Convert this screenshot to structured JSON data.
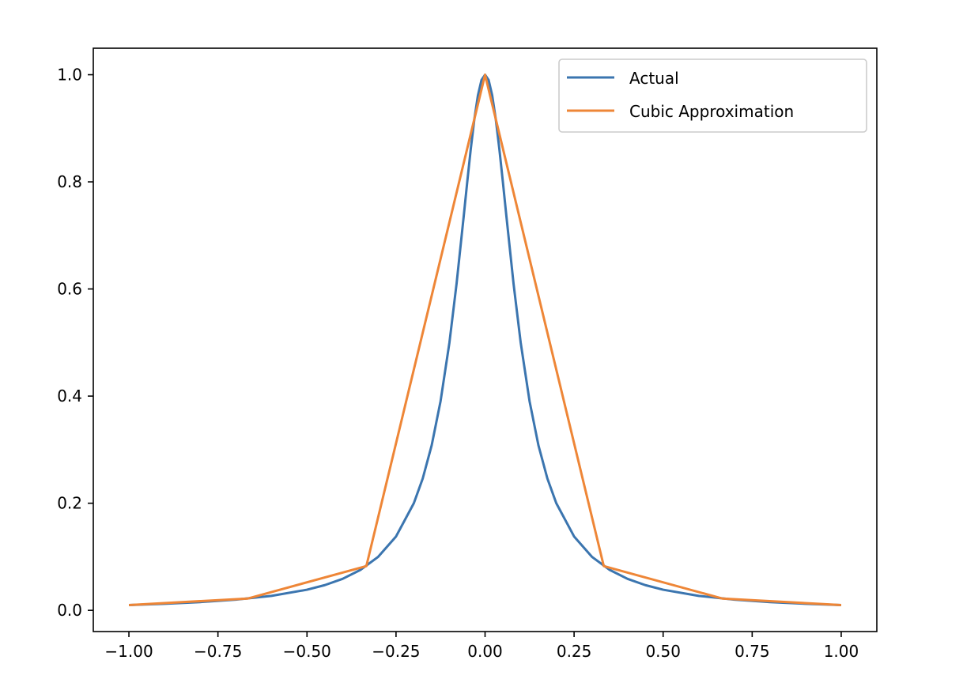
{
  "chart_data": {
    "type": "line",
    "title": "",
    "xlabel": "",
    "ylabel": "",
    "xlim": [
      -1.1,
      1.1
    ],
    "ylim": [
      -0.0396,
      1.0495
    ],
    "grid": false,
    "legend_placement": "top-right",
    "x_ticks": [
      -1.0,
      -0.75,
      -0.5,
      -0.25,
      0.0,
      0.25,
      0.5,
      0.75,
      1.0
    ],
    "x_tick_labels": [
      "−1.00",
      "−0.75",
      "−0.50",
      "−0.25",
      "0.00",
      "0.25",
      "0.50",
      "0.75",
      "1.00"
    ],
    "y_ticks": [
      0.0,
      0.2,
      0.4,
      0.6,
      0.8,
      1.0
    ],
    "y_tick_labels": [
      "0.0",
      "0.2",
      "0.4",
      "0.6",
      "0.8",
      "1.0"
    ],
    "series": [
      {
        "name": "Actual",
        "color": "#3b75af",
        "x": [
          -1.0,
          -0.9,
          -0.8,
          -0.7,
          -0.6,
          -0.5,
          -0.45,
          -0.4,
          -0.35,
          -0.3,
          -0.25,
          -0.2,
          -0.175,
          -0.15,
          -0.125,
          -0.1,
          -0.08,
          -0.06,
          -0.05,
          -0.04,
          -0.03,
          -0.02,
          -0.01,
          0.0,
          0.01,
          0.02,
          0.03,
          0.04,
          0.05,
          0.06,
          0.08,
          0.1,
          0.125,
          0.15,
          0.175,
          0.2,
          0.25,
          0.3,
          0.35,
          0.4,
          0.45,
          0.5,
          0.6,
          0.7,
          0.8,
          0.9,
          1.0
        ],
        "y": [
          0.0099,
          0.0122,
          0.0154,
          0.02,
          0.027,
          0.0385,
          0.0471,
          0.0588,
          0.0755,
          0.1,
          0.1379,
          0.2,
          0.2462,
          0.3077,
          0.3902,
          0.5,
          0.6098,
          0.7353,
          0.8,
          0.8621,
          0.9174,
          0.9615,
          0.9901,
          1.0,
          0.9901,
          0.9615,
          0.9174,
          0.8621,
          0.8,
          0.7353,
          0.6098,
          0.5,
          0.3902,
          0.3077,
          0.2462,
          0.2,
          0.1379,
          0.1,
          0.0755,
          0.0588,
          0.0471,
          0.0385,
          0.027,
          0.02,
          0.0154,
          0.0122,
          0.0099
        ]
      },
      {
        "name": "Cubic Approximation",
        "color": "#ee8637",
        "x": [
          -1.0,
          -0.6667,
          -0.3333,
          0.0,
          0.3333,
          0.6667,
          1.0
        ],
        "y": [
          0.0099,
          0.022,
          0.0826,
          1.0,
          0.0826,
          0.022,
          0.0099
        ]
      }
    ]
  }
}
